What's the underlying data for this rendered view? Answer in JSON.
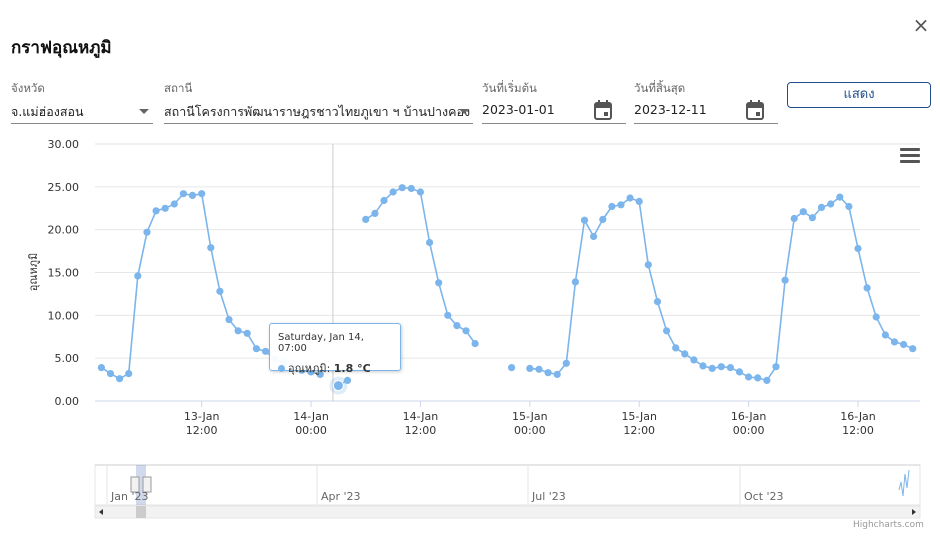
{
  "dialog": {
    "title": "กราฟอุณหภูมิ",
    "close_label": "×"
  },
  "filters": {
    "province_label": "จังหวัด",
    "province_value": "จ.แม่ฮ่องสอน",
    "station_label": "สถานี",
    "station_value": "สถานีโครงการพัฒนาราษฎรชาวไทยภูเขา ฯ บ้านปางคอง",
    "start_label": "วันที่เริ่มต้น",
    "start_value": "2023-01-01",
    "end_label": "วันที่สิ้นสุด",
    "end_value": "2023-12-11",
    "show_button": "แสดง"
  },
  "tooltip": {
    "date": "Saturday, Jan 14, 07:00",
    "series": "อุณหภูมิ",
    "value": "1.8 °C"
  },
  "navigator": {
    "labels": [
      "Jan '23",
      "Apr '23",
      "Jul '23",
      "Oct '23"
    ]
  },
  "credits": "Highcharts.com",
  "colors": {
    "series": "#7cb5ec",
    "accent": "#1f4e8c"
  },
  "chart_data": {
    "type": "line",
    "title": "",
    "ylabel": "อุณหภูมิ",
    "ylim": [
      0,
      30
    ],
    "yticks": [
      "0.00",
      "5.00",
      "10.00",
      "15.00",
      "20.00",
      "25.00",
      "30.00"
    ],
    "xticks": [
      {
        "h": 12,
        "l1": "13-Jan",
        "l2": "12:00"
      },
      {
        "h": 24,
        "l1": "14-Jan",
        "l2": "00:00"
      },
      {
        "h": 36,
        "l1": "14-Jan",
        "l2": "12:00"
      },
      {
        "h": 48,
        "l1": "15-Jan",
        "l2": "00:00"
      },
      {
        "h": 60,
        "l1": "15-Jan",
        "l2": "12:00"
      },
      {
        "h": 72,
        "l1": "16-Jan",
        "l2": "00:00"
      },
      {
        "h": 84,
        "l1": "16-Jan",
        "l2": "12:00"
      }
    ],
    "xrange_hours": [
      0.3,
      90.8
    ],
    "series": [
      {
        "segments": [
          [
            [
              1,
              3.9
            ],
            [
              2,
              3.2
            ],
            [
              3,
              2.6
            ],
            [
              4,
              3.2
            ],
            [
              5,
              14.6
            ],
            [
              6,
              19.7
            ],
            [
              7,
              22.2
            ],
            [
              8,
              22.5
            ],
            [
              9,
              23.0
            ],
            [
              10,
              24.2
            ],
            [
              11,
              24.0
            ],
            [
              12,
              24.2
            ],
            [
              13,
              17.9
            ],
            [
              14,
              12.8
            ],
            [
              15,
              9.5
            ],
            [
              16,
              8.2
            ],
            [
              17,
              7.9
            ],
            [
              18,
              6.1
            ],
            [
              19,
              5.8
            ],
            [
              20,
              4.9
            ],
            [
              21,
              4.5
            ],
            [
              22,
              4.4
            ],
            [
              23,
              3.6
            ],
            [
              24,
              3.4
            ],
            [
              25,
              3.1
            ],
            [
              26,
              null
            ],
            [
              27,
              1.8
            ],
            [
              28,
              2.4
            ]
          ],
          [
            [
              30,
              21.2
            ],
            [
              31,
              21.9
            ],
            [
              32,
              23.4
            ],
            [
              33,
              24.4
            ],
            [
              34,
              24.9
            ],
            [
              35,
              24.8
            ],
            [
              36,
              24.4
            ],
            [
              37,
              18.5
            ],
            [
              38,
              13.8
            ],
            [
              39,
              10.0
            ],
            [
              40,
              8.8
            ],
            [
              41,
              8.2
            ],
            [
              42,
              6.7
            ]
          ],
          [
            [
              46,
              3.9
            ]
          ],
          [
            [
              48,
              3.8
            ],
            [
              49,
              3.7
            ],
            [
              50,
              3.3
            ],
            [
              51,
              3.1
            ],
            [
              52,
              4.4
            ],
            [
              53,
              13.9
            ],
            [
              54,
              21.1
            ],
            [
              55,
              19.2
            ],
            [
              56,
              21.2
            ],
            [
              57,
              22.7
            ],
            [
              58,
              22.9
            ],
            [
              59,
              23.7
            ],
            [
              60,
              23.3
            ],
            [
              61,
              15.9
            ],
            [
              62,
              11.6
            ],
            [
              63,
              8.2
            ],
            [
              64,
              6.2
            ],
            [
              65,
              5.5
            ],
            [
              66,
              4.8
            ],
            [
              67,
              4.1
            ],
            [
              68,
              3.8
            ],
            [
              69,
              4.0
            ],
            [
              70,
              3.9
            ],
            [
              71,
              3.4
            ],
            [
              72,
              2.8
            ],
            [
              73,
              2.7
            ],
            [
              74,
              2.4
            ],
            [
              75,
              4.0
            ],
            [
              76,
              14.1
            ],
            [
              77,
              21.3
            ],
            [
              78,
              22.1
            ],
            [
              79,
              21.4
            ],
            [
              80,
              22.6
            ],
            [
              81,
              23.0
            ],
            [
              82,
              23.8
            ],
            [
              83,
              22.7
            ],
            [
              84,
              17.8
            ],
            [
              85,
              13.2
            ],
            [
              86,
              9.8
            ],
            [
              87,
              7.7
            ],
            [
              88,
              6.9
            ],
            [
              89,
              6.6
            ],
            [
              90,
              6.1
            ]
          ]
        ]
      }
    ],
    "crosshair_hour": 26.4
  }
}
